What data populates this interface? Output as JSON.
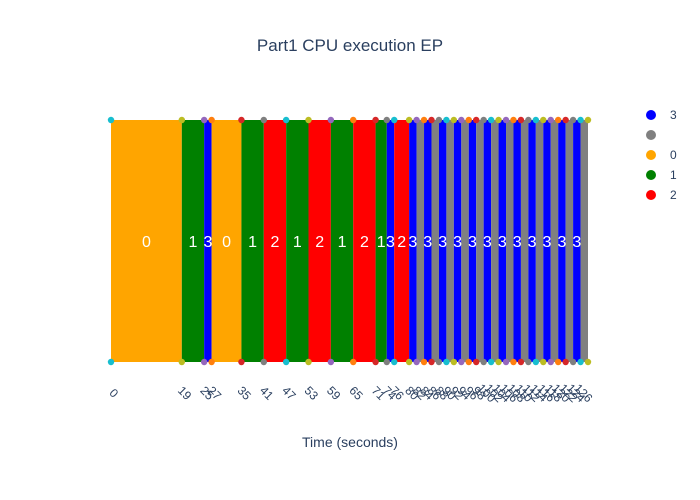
{
  "chart_data": {
    "type": "gantt",
    "title": "Part1 CPU execution EP",
    "xlabel": "Time (seconds)",
    "xlim": [
      0,
      128
    ],
    "colors": {
      "0": "#ffa500",
      "1": "#008000",
      "2": "#ff0000",
      "3": "#0000ff",
      "idle": "#808080"
    },
    "legend": [
      {
        "name": "3",
        "color": "#0000ff"
      },
      {
        "name": "",
        "color": "#808080"
      },
      {
        "name": "0",
        "color": "#ffa500"
      },
      {
        "name": "1",
        "color": "#008000"
      },
      {
        "name": "2",
        "color": "#ff0000"
      }
    ],
    "segments": [
      {
        "start": 0,
        "end": 19,
        "process": "0",
        "label": "0"
      },
      {
        "start": 19,
        "end": 25,
        "process": "1",
        "label": "1"
      },
      {
        "start": 25,
        "end": 27,
        "process": "3",
        "label": "3"
      },
      {
        "start": 27,
        "end": 35,
        "process": "0",
        "label": "0"
      },
      {
        "start": 35,
        "end": 41,
        "process": "1",
        "label": "1"
      },
      {
        "start": 41,
        "end": 47,
        "process": "2",
        "label": "2"
      },
      {
        "start": 47,
        "end": 53,
        "process": "1",
        "label": "1"
      },
      {
        "start": 53,
        "end": 59,
        "process": "2",
        "label": "2"
      },
      {
        "start": 59,
        "end": 65,
        "process": "1",
        "label": "1"
      },
      {
        "start": 65,
        "end": 71,
        "process": "2",
        "label": "2"
      },
      {
        "start": 71,
        "end": 74,
        "process": "1",
        "label": "1"
      },
      {
        "start": 74,
        "end": 76,
        "process": "3",
        "label": "3"
      },
      {
        "start": 76,
        "end": 80,
        "process": "2",
        "label": "2"
      },
      {
        "start": 80,
        "end": 82,
        "process": "3",
        "label": "3"
      },
      {
        "start": 82,
        "end": 84,
        "process": "idle",
        "label": ""
      },
      {
        "start": 84,
        "end": 86,
        "process": "3",
        "label": "3"
      },
      {
        "start": 86,
        "end": 88,
        "process": "idle",
        "label": ""
      },
      {
        "start": 88,
        "end": 90,
        "process": "3",
        "label": "3"
      },
      {
        "start": 90,
        "end": 92,
        "process": "idle",
        "label": ""
      },
      {
        "start": 92,
        "end": 94,
        "process": "3",
        "label": "3"
      },
      {
        "start": 94,
        "end": 96,
        "process": "idle",
        "label": ""
      },
      {
        "start": 96,
        "end": 98,
        "process": "3",
        "label": "3"
      },
      {
        "start": 98,
        "end": 100,
        "process": "idle",
        "label": ""
      },
      {
        "start": 100,
        "end": 102,
        "process": "3",
        "label": "3"
      },
      {
        "start": 102,
        "end": 104,
        "process": "idle",
        "label": ""
      },
      {
        "start": 104,
        "end": 106,
        "process": "3",
        "label": "3"
      },
      {
        "start": 106,
        "end": 108,
        "process": "idle",
        "label": ""
      },
      {
        "start": 108,
        "end": 110,
        "process": "3",
        "label": "3"
      },
      {
        "start": 110,
        "end": 112,
        "process": "idle",
        "label": ""
      },
      {
        "start": 112,
        "end": 114,
        "process": "3",
        "label": "3"
      },
      {
        "start": 114,
        "end": 116,
        "process": "idle",
        "label": ""
      },
      {
        "start": 116,
        "end": 118,
        "process": "3",
        "label": "3"
      },
      {
        "start": 118,
        "end": 120,
        "process": "idle",
        "label": ""
      },
      {
        "start": 120,
        "end": 122,
        "process": "3",
        "label": "3"
      },
      {
        "start": 122,
        "end": 124,
        "process": "idle",
        "label": ""
      },
      {
        "start": 124,
        "end": 126,
        "process": "3",
        "label": "3"
      },
      {
        "start": 126,
        "end": 128,
        "process": "idle",
        "label": ""
      }
    ],
    "ticks": [
      0,
      19,
      25,
      27,
      35,
      41,
      47,
      53,
      59,
      65,
      71,
      74,
      76,
      80,
      82,
      84,
      86,
      88,
      90,
      92,
      94,
      96,
      98,
      100,
      102,
      104,
      106,
      108,
      110,
      112,
      114,
      116,
      118,
      120,
      122,
      124,
      126
    ]
  }
}
